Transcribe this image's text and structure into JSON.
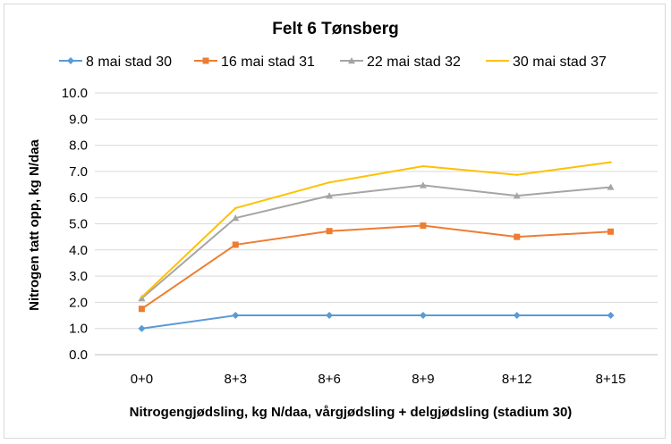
{
  "chart_data": {
    "type": "line",
    "title": "Felt 6 Tønsberg",
    "xlabel": "Nitrogengjødsling, kg N/daa, vårgjødsling + delgjødsling (stadium 30)",
    "ylabel": "Nitrogen tatt opp, kg N/daa",
    "categories": [
      "0+0",
      "8+3",
      "8+6",
      "8+9",
      "8+12",
      "8+15"
    ],
    "ylim": [
      0,
      10
    ],
    "yticks": [
      "0.0",
      "1.0",
      "2.0",
      "3.0",
      "4.0",
      "5.0",
      "6.0",
      "7.0",
      "8.0",
      "9.0",
      "10.0"
    ],
    "grid": true,
    "legend_position": "top",
    "series": [
      {
        "name": "8 mai stad 30",
        "color": "#5B9BD5",
        "marker": "diamond",
        "values": [
          1.0,
          1.5,
          1.5,
          1.5,
          1.5,
          1.5
        ]
      },
      {
        "name": "16 mai stad 31",
        "color": "#ED7D31",
        "marker": "square",
        "values": [
          1.75,
          4.2,
          4.72,
          4.93,
          4.5,
          4.7
        ]
      },
      {
        "name": "22 mai stad 32",
        "color": "#A5A5A5",
        "marker": "triangle",
        "values": [
          2.15,
          5.22,
          6.07,
          6.47,
          6.07,
          6.4
        ]
      },
      {
        "name": "30 mai stad 37",
        "color": "#FFC000",
        "marker": "none",
        "values": [
          2.2,
          5.6,
          6.58,
          7.2,
          6.87,
          7.35
        ]
      }
    ]
  }
}
